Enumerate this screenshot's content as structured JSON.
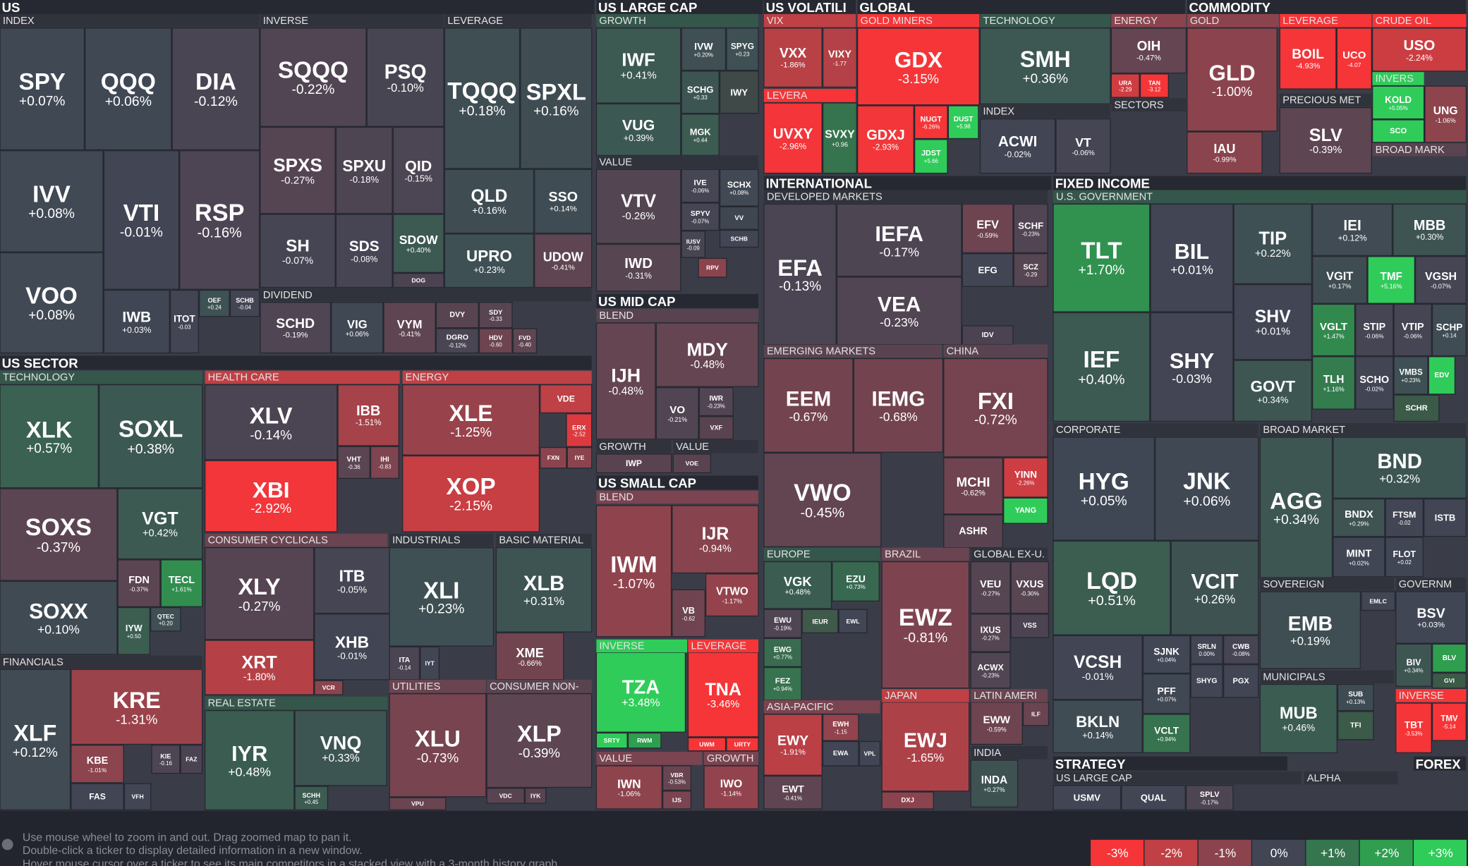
{
  "sections": [
    {
      "text": "US"
    },
    {
      "text": "INDEX"
    },
    {
      "text": "INVERSE"
    },
    {
      "text": "LEVERAGE"
    },
    {
      "text": "DIVIDEND"
    },
    {
      "text": "US LARGE CAP"
    },
    {
      "text": "GROWTH",
      "color": "#35564a"
    },
    {
      "text": "VALUE"
    },
    {
      "text": "US MID CAP"
    },
    {
      "text": "BLEND",
      "color": "#5a4350"
    },
    {
      "text": "GROWTH"
    },
    {
      "text": "VALUE"
    },
    {
      "text": "US SMALL CAP"
    },
    {
      "text": "BLEND",
      "color": "#7a4450"
    },
    {
      "text": "INVERSE",
      "color": "#30cc5a"
    },
    {
      "text": "LEVERAGE",
      "color": "#f63538"
    },
    {
      "text": "VALUE",
      "color": "#7a4450"
    },
    {
      "text": "GROWTH",
      "color": "#7a4450"
    },
    {
      "text": "US VOLATILI"
    },
    {
      "text": "VIX",
      "color": "#bf4045"
    },
    {
      "text": "LEVERA",
      "color": "#f63538"
    },
    {
      "text": "GLOBAL"
    },
    {
      "text": "GOLD MINERS",
      "color": "#f63538"
    },
    {
      "text": "TECHNOLOGY",
      "color": "#35564a"
    },
    {
      "text": "INDEX"
    },
    {
      "text": "ENERGY",
      "color": "#8b444e"
    },
    {
      "text": "SECTORS"
    },
    {
      "text": "COMMODITY"
    },
    {
      "text": "GOLD",
      "color": "#8b444e"
    },
    {
      "text": "LEVERAGE",
      "color": "#f63538"
    },
    {
      "text": "CRUDE OIL",
      "color": "#f63538"
    },
    {
      "text": "INVERS",
      "color": "#30cc5a"
    },
    {
      "text": "PRECIOUS MET"
    },
    {
      "text": "BROAD MARK",
      "color": "#5a4350"
    },
    {
      "text": "INTERNATIONAL"
    },
    {
      "text": "DEVELOPED MARKETS"
    },
    {
      "text": "EMERGING MARKETS",
      "color": "#5a4350"
    },
    {
      "text": "CHINA",
      "color": "#5a4350"
    },
    {
      "text": "EUROPE",
      "color": "#35564a"
    },
    {
      "text": "ASIA-PACIFIC",
      "color": "#7a4450"
    },
    {
      "text": "BRAZIL",
      "color": "#6a4450"
    },
    {
      "text": "JAPAN",
      "color": "#bf4045"
    },
    {
      "text": "GLOBAL EX-U."
    },
    {
      "text": "LATIN AMERI",
      "color": "#6a4450"
    },
    {
      "text": "INDIA"
    },
    {
      "text": "FIXED INCOME"
    },
    {
      "text": "U.S. GOVERNMENT",
      "color": "#35564a"
    },
    {
      "text": "CORPORATE"
    },
    {
      "text": "BROAD MARKET"
    },
    {
      "text": "SOVEREIGN"
    },
    {
      "text": "GOVERNM"
    },
    {
      "text": "MUNICIPALS"
    },
    {
      "text": "INVERSE",
      "color": "#f63538"
    },
    {
      "text": "US SECTOR"
    },
    {
      "text": "TECHNOLOGY",
      "color": "#35564a"
    },
    {
      "text": "FINANCIALS"
    },
    {
      "text": "HEALTH CARE",
      "color": "#bf4045"
    },
    {
      "text": "ENERGY",
      "color": "#bf4045"
    },
    {
      "text": "CONSUMER CYCLICALS",
      "color": "#6a4450"
    },
    {
      "text": "INDUSTRIALS"
    },
    {
      "text": "BASIC MATERIAL"
    },
    {
      "text": "REAL ESTATE",
      "color": "#35564a"
    },
    {
      "text": "UTILITIES",
      "color": "#6a4450"
    },
    {
      "text": "CONSUMER NON-",
      "color": "#5a4350"
    },
    {
      "text": "STRATEGY"
    },
    {
      "text": "US LARGE CAP"
    },
    {
      "text": "ALPHA"
    },
    {
      "text": "FOREX"
    }
  ],
  "tiles": [
    {
      "ticker": "SPY",
      "change": "+0.07%"
    },
    {
      "ticker": "QQQ",
      "change": "+0.06%"
    },
    {
      "ticker": "DIA",
      "change": "-0.12%"
    },
    {
      "ticker": "IVV",
      "change": "+0.08%"
    },
    {
      "ticker": "VTI",
      "change": "-0.01%"
    },
    {
      "ticker": "RSP",
      "change": "-0.16%"
    },
    {
      "ticker": "VOO",
      "change": "+0.08%"
    },
    {
      "ticker": "IWB",
      "change": "+0.03%"
    },
    {
      "ticker": "ITOT",
      "change": "-0.03"
    },
    {
      "ticker": "OEF",
      "change": "+0.24"
    },
    {
      "ticker": "SCHB",
      "change": "-0.04"
    },
    {
      "ticker": "SQQQ",
      "change": "-0.22%"
    },
    {
      "ticker": "PSQ",
      "change": "-0.10%"
    },
    {
      "ticker": "SPXS",
      "change": "-0.27%"
    },
    {
      "ticker": "SPXU",
      "change": "-0.18%"
    },
    {
      "ticker": "QID",
      "change": "-0.15%"
    },
    {
      "ticker": "SH",
      "change": "-0.07%"
    },
    {
      "ticker": "SDS",
      "change": "-0.08%"
    },
    {
      "ticker": "SDOW",
      "change": "+0.40%"
    },
    {
      "ticker": "DOG",
      "color": "#4b4352"
    },
    {
      "ticker": "TQQQ",
      "change": "+0.18%"
    },
    {
      "ticker": "SPXL",
      "change": "+0.16%"
    },
    {
      "ticker": "QLD",
      "change": "+0.16%"
    },
    {
      "ticker": "SSO",
      "change": "+0.14%"
    },
    {
      "ticker": "UPRO",
      "change": "+0.23%"
    },
    {
      "ticker": "UDOW",
      "change": "-0.41%"
    },
    {
      "ticker": "SCHD",
      "change": "-0.19%"
    },
    {
      "ticker": "VIG",
      "change": "+0.06%"
    },
    {
      "ticker": "VYM",
      "change": "-0.41%"
    },
    {
      "ticker": "DVY",
      "color": "#574450"
    },
    {
      "ticker": "SDY",
      "change": "-0.33"
    },
    {
      "ticker": "DGRO",
      "change": "-0.12%"
    },
    {
      "ticker": "HDV",
      "change": "-0.60"
    },
    {
      "ticker": "FVD",
      "change": "-0.40"
    },
    {
      "ticker": "IWF",
      "change": "+0.41%"
    },
    {
      "ticker": "IVW",
      "change": "+0.20%"
    },
    {
      "ticker": "SPYG",
      "change": "+0.23"
    },
    {
      "ticker": "VUG",
      "change": "+0.39%"
    },
    {
      "ticker": "SCHG",
      "change": "+0.33"
    },
    {
      "ticker": "IWY",
      "color": "#3f4a48"
    },
    {
      "ticker": "MGK",
      "change": "+0.44"
    },
    {
      "ticker": "VTV",
      "change": "-0.26%"
    },
    {
      "ticker": "IVE",
      "change": "-0.06%"
    },
    {
      "ticker": "SCHX",
      "change": "+0.08%"
    },
    {
      "ticker": "SPYV",
      "change": "-0.07%"
    },
    {
      "ticker": "VV",
      "color": "#3f4650"
    },
    {
      "ticker": "IUSV",
      "change": "-0.09"
    },
    {
      "ticker": "SCHB",
      "color": "#414554"
    },
    {
      "ticker": "IWD",
      "change": "-0.31%"
    },
    {
      "ticker": "RPV",
      "color": "#8b444e"
    },
    {
      "ticker": "IJH",
      "change": "-0.48%"
    },
    {
      "ticker": "MDY",
      "change": "-0.48%"
    },
    {
      "ticker": "VO",
      "change": "-0.21%"
    },
    {
      "ticker": "IWR",
      "change": "-0.23%"
    },
    {
      "ticker": "VXF",
      "color": "#5a4350"
    },
    {
      "ticker": "IWP",
      "color": "#5a4350"
    },
    {
      "ticker": "VOE",
      "color": "#5a4350"
    },
    {
      "ticker": "IWM",
      "change": "-1.07%"
    },
    {
      "ticker": "IJR",
      "change": "-0.94%"
    },
    {
      "ticker": "VTWO",
      "change": "-1.17%"
    },
    {
      "ticker": "VB",
      "change": "-0.62"
    },
    {
      "ticker": "TZA",
      "change": "+3.48%"
    },
    {
      "ticker": "SRTY",
      "color": "#30cc5a"
    },
    {
      "ticker": "RWM",
      "color": "#2f9e4f"
    },
    {
      "ticker": "TNA",
      "change": "-3.46%"
    },
    {
      "ticker": "UWM",
      "color": "#f63538"
    },
    {
      "ticker": "URTY",
      "color": "#f63538"
    },
    {
      "ticker": "IWN",
      "change": "-1.06%"
    },
    {
      "ticker": "VBR",
      "change": "-0.53%"
    },
    {
      "ticker": "IJS",
      "color": "#7a4450"
    },
    {
      "ticker": "IWO",
      "change": "-1.14%"
    },
    {
      "ticker": "VXX",
      "change": "-1.86%"
    },
    {
      "ticker": "VIXY",
      "change": "-1.77"
    },
    {
      "ticker": "UVXY",
      "change": "-2.96%"
    },
    {
      "ticker": "SVXY",
      "change": "+0.96"
    },
    {
      "ticker": "GDX",
      "change": "-3.15%"
    },
    {
      "ticker": "GDXJ",
      "change": "-2.93%"
    },
    {
      "ticker": "NUGT",
      "change": "-6.26%"
    },
    {
      "ticker": "DUST",
      "change": "+5.98"
    },
    {
      "ticker": "JDST",
      "change": "+5.66"
    },
    {
      "ticker": "SMH",
      "change": "+0.36%"
    },
    {
      "ticker": "ACWI",
      "change": "-0.02%"
    },
    {
      "ticker": "VT",
      "change": "-0.06%"
    },
    {
      "ticker": "OIH",
      "change": "-0.47%"
    },
    {
      "ticker": "URA",
      "change": "-2.29"
    },
    {
      "ticker": "TAN",
      "change": "-3.12"
    },
    {
      "ticker": "GLD",
      "change": "-1.00%"
    },
    {
      "ticker": "IAU",
      "change": "-0.99%"
    },
    {
      "ticker": "BOIL",
      "change": "-4.93%"
    },
    {
      "ticker": "UCO",
      "change": "-4.07"
    },
    {
      "ticker": "USO",
      "change": "-2.24%"
    },
    {
      "ticker": "KOLD",
      "change": "+5.05%"
    },
    {
      "ticker": "UNG",
      "change": "-1.06%"
    },
    {
      "ticker": "SCO",
      "color": "#30cc5a"
    },
    {
      "ticker": "SLV",
      "change": "-0.39%"
    },
    {
      "ticker": "EFA",
      "change": "-0.13%"
    },
    {
      "ticker": "IEFA",
      "change": "-0.17%"
    },
    {
      "ticker": "EFV",
      "change": "-0.59%"
    },
    {
      "ticker": "SCHF",
      "change": "-0.23%"
    },
    {
      "ticker": "VEA",
      "change": "-0.23%"
    },
    {
      "ticker": "EFG",
      "color": "#414554"
    },
    {
      "ticker": "SCZ",
      "change": "-0.29"
    },
    {
      "ticker": "IDV",
      "color": "#4b4352"
    },
    {
      "ticker": "EEM",
      "change": "-0.67%"
    },
    {
      "ticker": "IEMG",
      "change": "-0.68%"
    },
    {
      "ticker": "VWO",
      "change": "-0.45%"
    },
    {
      "ticker": "FXI",
      "change": "-0.72%"
    },
    {
      "ticker": "MCHI",
      "change": "-0.62%"
    },
    {
      "ticker": "YINN",
      "change": "-2.26%"
    },
    {
      "ticker": "YANG",
      "color": "#30cc5a"
    },
    {
      "ticker": "ASHR",
      "color": "#5a4350"
    },
    {
      "ticker": "VGK",
      "change": "+0.48%"
    },
    {
      "ticker": "EZU",
      "change": "+0.73%"
    },
    {
      "ticker": "EWU",
      "change": "-0.19%"
    },
    {
      "ticker": "IEUR",
      "color": "#3f5a4a"
    },
    {
      "ticker": "EWL",
      "color": "#414554"
    },
    {
      "ticker": "EWG",
      "change": "+0.77%"
    },
    {
      "ticker": "FEZ",
      "change": "+0.94%"
    },
    {
      "ticker": "EWY",
      "change": "-1.91%"
    },
    {
      "ticker": "EWH",
      "change": "-1.15"
    },
    {
      "ticker": "EWA",
      "color": "#414554"
    },
    {
      "ticker": "VPL",
      "color": "#414554"
    },
    {
      "ticker": "EWT",
      "change": "-0.41%"
    },
    {
      "ticker": "EWZ",
      "change": "-0.81%"
    },
    {
      "ticker": "EWJ",
      "change": "-1.65%"
    },
    {
      "ticker": "DXJ",
      "color": "#8b444e"
    },
    {
      "ticker": "VEU",
      "change": "-0.27%"
    },
    {
      "ticker": "VXUS",
      "change": "-0.30%"
    },
    {
      "ticker": "VSS",
      "color": "#4b4352"
    },
    {
      "ticker": "IXUS",
      "change": "-0.27%"
    },
    {
      "ticker": "ACWX",
      "change": "-0.23%"
    },
    {
      "ticker": "EWW",
      "change": "-0.59%"
    },
    {
      "ticker": "ILF",
      "color": "#6a4450"
    },
    {
      "ticker": "INDA",
      "change": "+0.27%"
    },
    {
      "ticker": "TLT",
      "change": "+1.70%"
    },
    {
      "ticker": "BIL",
      "change": "+0.01%"
    },
    {
      "ticker": "TIP",
      "change": "+0.22%"
    },
    {
      "ticker": "IEI",
      "change": "+0.12%"
    },
    {
      "ticker": "MBB",
      "change": "+0.30%"
    },
    {
      "ticker": "VGIT",
      "change": "+0.17%"
    },
    {
      "ticker": "TMF",
      "change": "+5.16%"
    },
    {
      "ticker": "VGSH",
      "change": "-0.07%"
    },
    {
      "ticker": "SHV",
      "change": "+0.01%"
    },
    {
      "ticker": "IEF",
      "change": "+0.40%"
    },
    {
      "ticker": "SHY",
      "change": "-0.03%"
    },
    {
      "ticker": "VGLT",
      "change": "+1.47%"
    },
    {
      "ticker": "STIP",
      "change": "-0.06%"
    },
    {
      "ticker": "VTIP",
      "change": "-0.06%"
    },
    {
      "ticker": "SCHP",
      "change": "+0.14"
    },
    {
      "ticker": "GOVT",
      "change": "+0.34%"
    },
    {
      "ticker": "TLH",
      "change": "+1.16%"
    },
    {
      "ticker": "SCHO",
      "change": "-0.02%"
    },
    {
      "ticker": "VMBS",
      "change": "+0.23%"
    },
    {
      "ticker": "EDV",
      "color": "#30cc5a"
    },
    {
      "ticker": "SCHR",
      "color": "#3b5a48"
    },
    {
      "ticker": "HYG",
      "change": "+0.05%"
    },
    {
      "ticker": "JNK",
      "change": "+0.06%"
    },
    {
      "ticker": "LQD",
      "change": "+0.51%"
    },
    {
      "ticker": "VCIT",
      "change": "+0.26%"
    },
    {
      "ticker": "VCSH",
      "change": "-0.01%"
    },
    {
      "ticker": "SJNK",
      "change": "+0.04%"
    },
    {
      "ticker": "SRLN",
      "change": "0.00%"
    },
    {
      "ticker": "CWB",
      "change": "-0.08%"
    },
    {
      "ticker": "SHYG",
      "color": "#414554"
    },
    {
      "ticker": "PGX",
      "color": "#414554"
    },
    {
      "ticker": "PFF",
      "change": "+0.07%"
    },
    {
      "ticker": "BKLN",
      "change": "+0.14%"
    },
    {
      "ticker": "VCLT",
      "change": "+0.94%"
    },
    {
      "ticker": "BND",
      "change": "+0.32%"
    },
    {
      "ticker": "AGG",
      "change": "+0.34%"
    },
    {
      "ticker": "BNDX",
      "change": "+0.29%"
    },
    {
      "ticker": "FTSM",
      "change": "-0.02"
    },
    {
      "ticker": "ISTB",
      "color": "#414554"
    },
    {
      "ticker": "MINT",
      "change": "+0.02%"
    },
    {
      "ticker": "FLOT",
      "change": "+0.02"
    },
    {
      "ticker": "EMB",
      "change": "+0.19%"
    },
    {
      "ticker": "EMLC",
      "color": "#414554"
    },
    {
      "ticker": "BSV",
      "change": "+0.03%"
    },
    {
      "ticker": "BIV",
      "change": "+0.34%"
    },
    {
      "ticker": "BLV",
      "color": "#2f9e4f"
    },
    {
      "ticker": "GVI",
      "color": "#3b5a48"
    },
    {
      "ticker": "MUB",
      "change": "+0.46%"
    },
    {
      "ticker": "SUB",
      "change": "+0.13%"
    },
    {
      "ticker": "TFI",
      "color": "#3b5a48"
    },
    {
      "ticker": "TBT",
      "change": "-3.53%"
    },
    {
      "ticker": "TMV",
      "change": "-5.14"
    },
    {
      "ticker": "XLK",
      "change": "+0.57%"
    },
    {
      "ticker": "SOXL",
      "change": "+0.38%"
    },
    {
      "ticker": "SOXS",
      "change": "-0.37%"
    },
    {
      "ticker": "VGT",
      "change": "+0.42%"
    },
    {
      "ticker": "SOXX",
      "change": "+0.10%"
    },
    {
      "ticker": "FDN",
      "change": "-0.37%"
    },
    {
      "ticker": "TECL",
      "change": "+1.61%"
    },
    {
      "ticker": "IYW",
      "change": "+0.50"
    },
    {
      "ticker": "QTEC",
      "change": "+0.20"
    },
    {
      "ticker": "XLF",
      "change": "+0.12%"
    },
    {
      "ticker": "KRE",
      "change": "-1.31%"
    },
    {
      "ticker": "KBE",
      "change": "-1.01%"
    },
    {
      "ticker": "KIE",
      "change": "-0.16"
    },
    {
      "ticker": "FAZ",
      "color": "#4b4352"
    },
    {
      "ticker": "FAS",
      "color": "#414554"
    },
    {
      "ticker": "VFH",
      "color": "#414554"
    },
    {
      "ticker": "XLV",
      "change": "-0.14%"
    },
    {
      "ticker": "IBB",
      "change": "-1.51%"
    },
    {
      "ticker": "VHT",
      "change": "-0.36"
    },
    {
      "ticker": "IHI",
      "change": "-0.83"
    },
    {
      "ticker": "XBI",
      "change": "-2.92%"
    },
    {
      "ticker": "XLE",
      "change": "-1.25%"
    },
    {
      "ticker": "VDE",
      "color": "#bf4045"
    },
    {
      "ticker": "ERX",
      "change": "-2.52"
    },
    {
      "ticker": "FXN",
      "color": "#8b444e"
    },
    {
      "ticker": "IYE",
      "color": "#8b444e"
    },
    {
      "ticker": "XOP",
      "change": "-2.15%"
    },
    {
      "ticker": "XLY",
      "change": "-0.27%"
    },
    {
      "ticker": "ITB",
      "change": "-0.05%"
    },
    {
      "ticker": "XHB",
      "change": "-0.01%"
    },
    {
      "ticker": "XRT",
      "change": "-1.80%"
    },
    {
      "ticker": "VCR",
      "color": "#8b444e"
    },
    {
      "ticker": "XLI",
      "change": "+0.23%"
    },
    {
      "ticker": "ITA",
      "change": "-0.14"
    },
    {
      "ticker": "IYT",
      "color": "#414554"
    },
    {
      "ticker": "XLB",
      "change": "+0.31%"
    },
    {
      "ticker": "XME",
      "change": "-0.66%"
    },
    {
      "ticker": "IYR",
      "change": "+0.48%"
    },
    {
      "ticker": "VNQ",
      "change": "+0.33%"
    },
    {
      "ticker": "SCHH",
      "change": "+0.45"
    },
    {
      "ticker": "XLU",
      "change": "-0.73%"
    },
    {
      "ticker": "VPU",
      "color": "#6a4450"
    },
    {
      "ticker": "XLP",
      "change": "-0.39%"
    },
    {
      "ticker": "VDC",
      "color": "#5a4350"
    },
    {
      "ticker": "IYK",
      "color": "#5a4350"
    },
    {
      "ticker": "USMV",
      "color": "#414554"
    },
    {
      "ticker": "QUAL",
      "color": "#414554"
    },
    {
      "ticker": "SPLV",
      "change": "-0.17%"
    }
  ],
  "footer": {
    "lines": [
      "Use mouse wheel to zoom in and out. Drag zoomed map to pan it.",
      "Double-click a ticker to display detailed information in a new window.",
      "Hover mouse cursor over a ticker to see its main competitors in a stacked view with a 3-month history graph."
    ]
  },
  "legend": [
    {
      "label": "-3%",
      "color": "#f63538"
    },
    {
      "label": "-2%",
      "color": "#bf4045"
    },
    {
      "label": "-1%",
      "color": "#8b444e"
    },
    {
      "label": "0%",
      "color": "#414554"
    },
    {
      "label": "+1%",
      "color": "#35764e"
    },
    {
      "label": "+2%",
      "color": "#2f9e4f"
    },
    {
      "label": "+3%",
      "color": "#30cc5a"
    }
  ]
}
